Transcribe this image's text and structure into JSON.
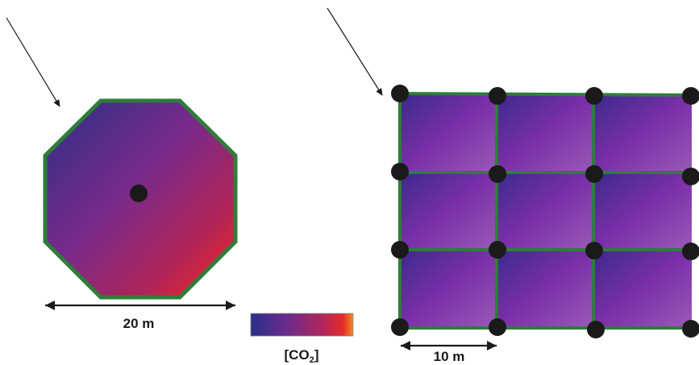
{
  "left_panel": {
    "scale_label": "20 m",
    "colors": {
      "border": "#2e7d3a",
      "dark": "#1a1a1a"
    }
  },
  "right_panel": {
    "scale_label": "10 m",
    "grid": {
      "rows": 3,
      "cols": 3
    },
    "colors": {
      "cell_dark": "#3a2a8c",
      "cell_mid": "#7b2fa8",
      "cell_light": "#8e55b0",
      "border": "#2e7d3a"
    }
  },
  "legend": {
    "label_main": "[CO",
    "label_sub": "2",
    "label_end": "]",
    "gradient": [
      "#2a2f8c",
      "#6a2b8e",
      "#b0265c",
      "#e42a2a",
      "#f08a1e"
    ]
  }
}
